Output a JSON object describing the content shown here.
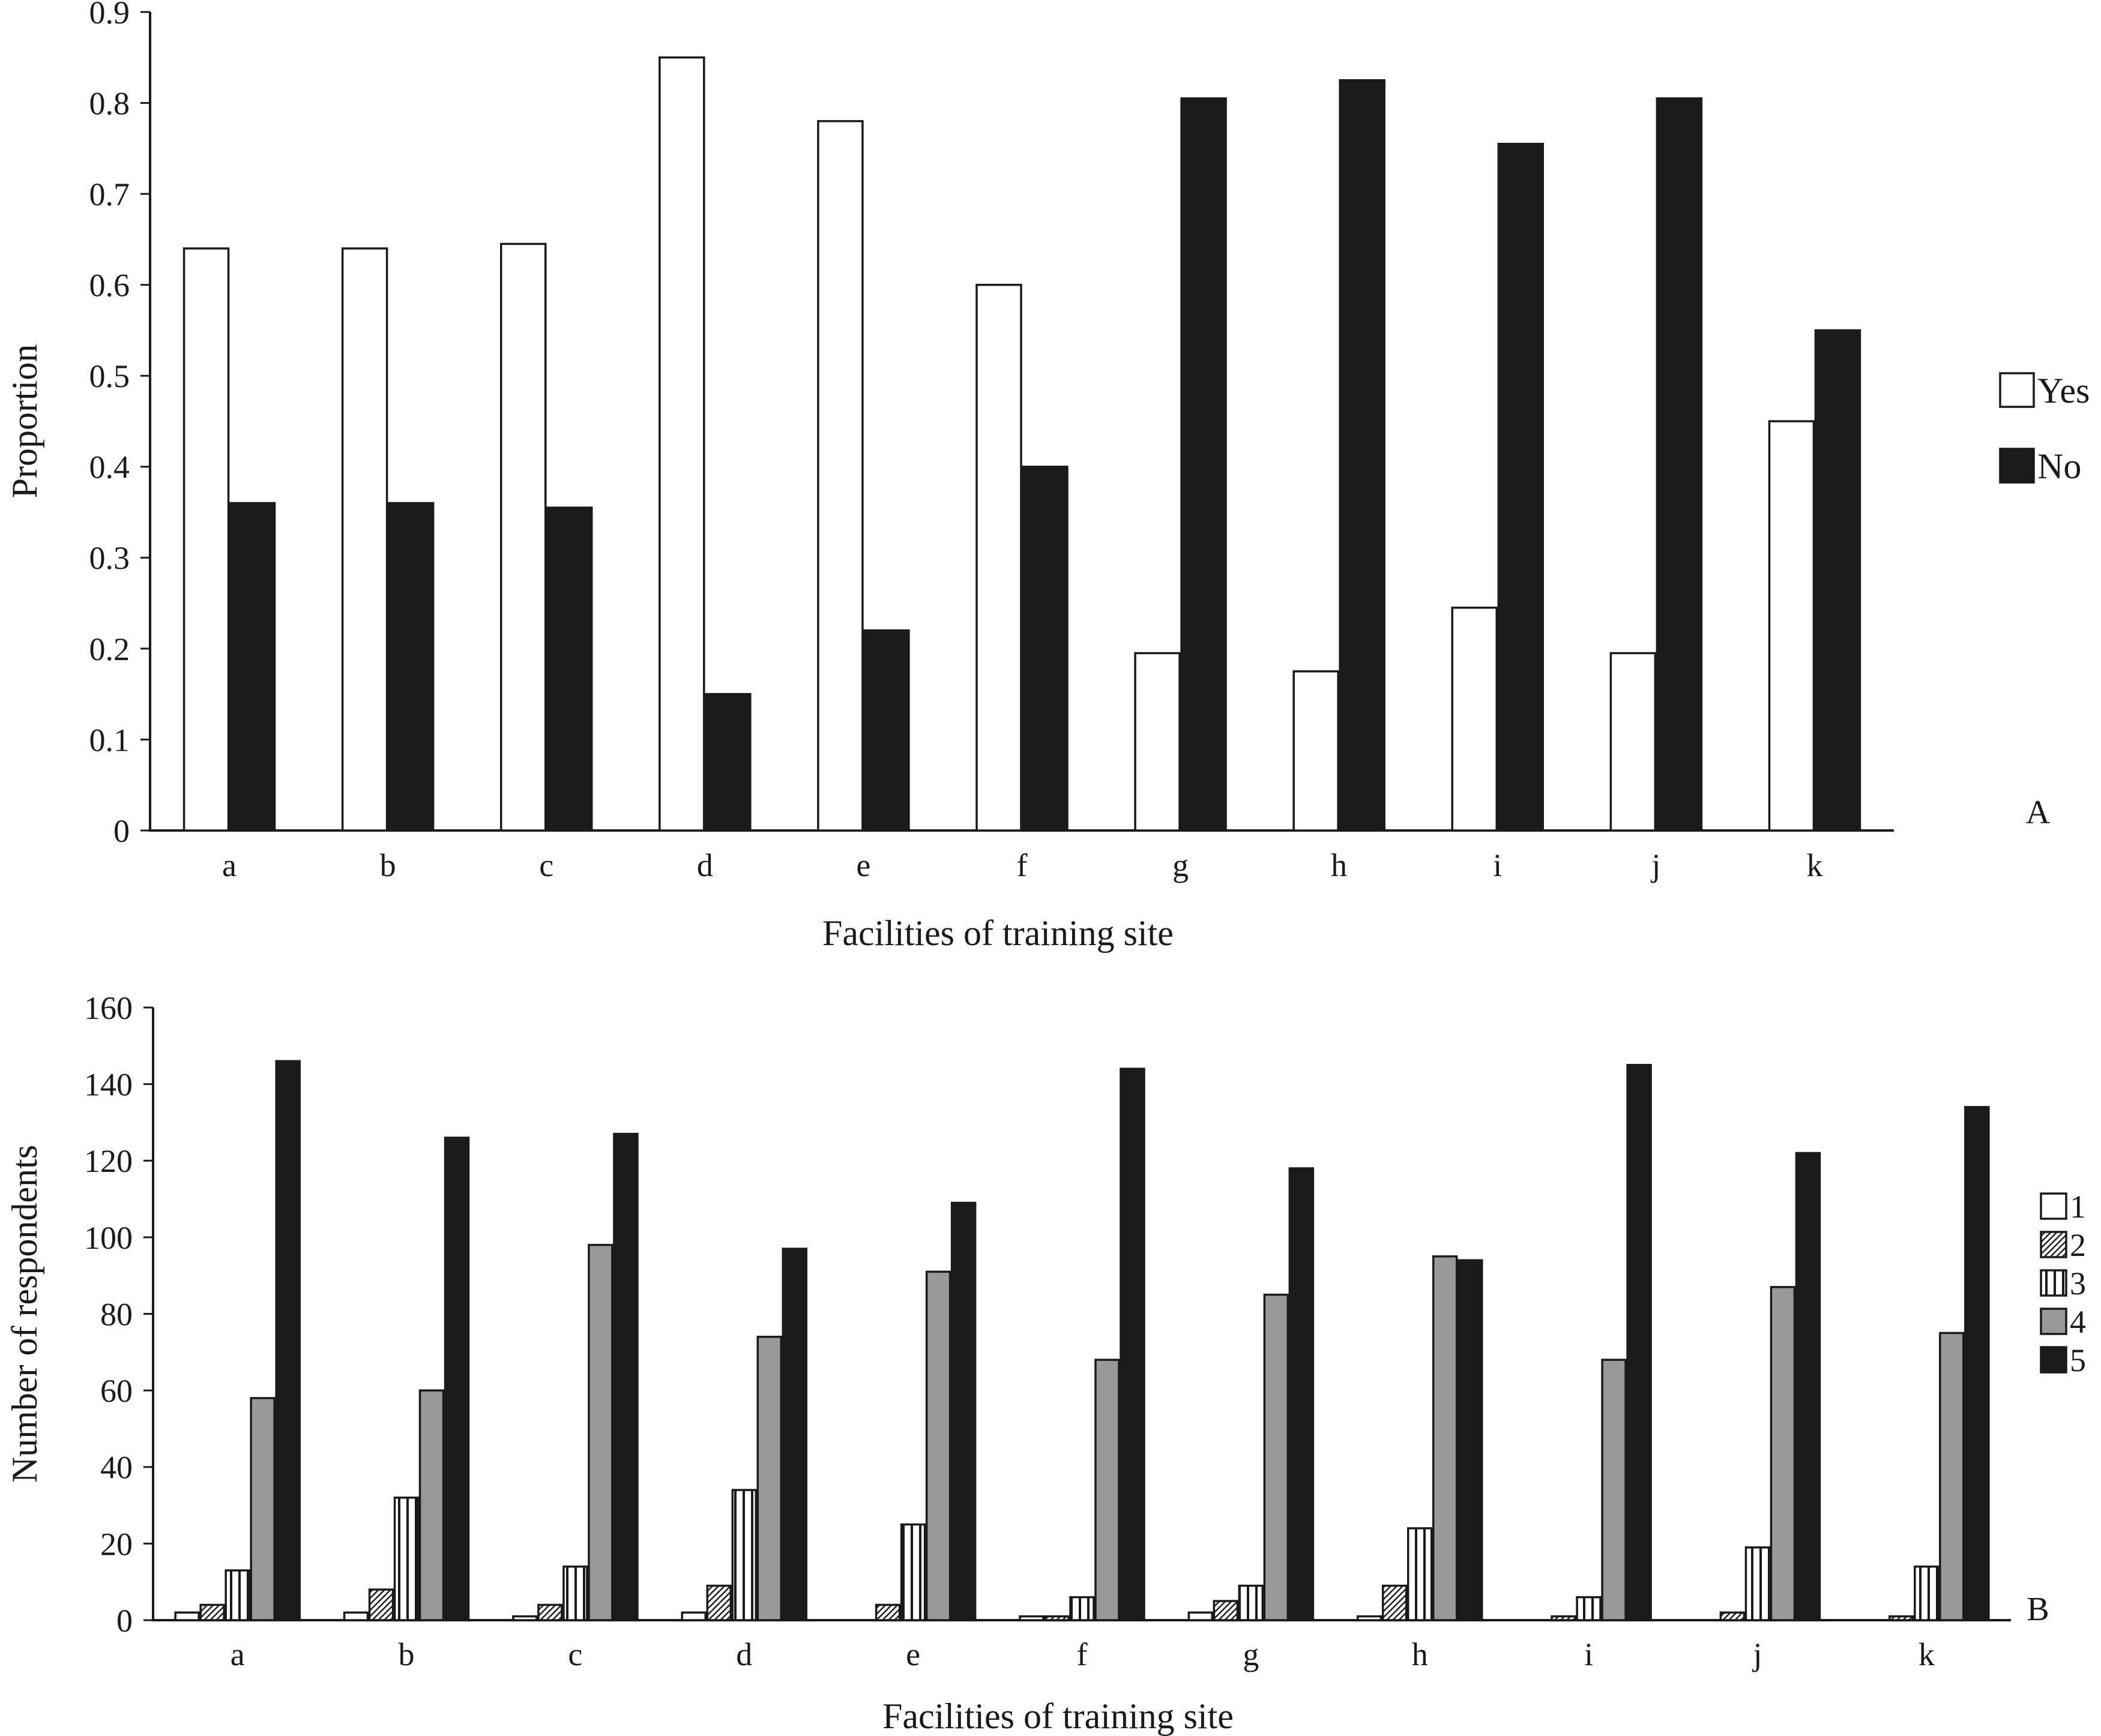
{
  "chart_data": [
    {
      "type": "bar",
      "panel_label": "A",
      "categories": [
        "a",
        "b",
        "c",
        "d",
        "e",
        "f",
        "g",
        "h",
        "i",
        "j",
        "k"
      ],
      "series": [
        {
          "name": "Yes",
          "values": [
            0.64,
            0.64,
            0.645,
            0.85,
            0.78,
            0.6,
            0.195,
            0.175,
            0.245,
            0.195,
            0.45
          ]
        },
        {
          "name": "No",
          "values": [
            0.36,
            0.36,
            0.355,
            0.15,
            0.22,
            0.4,
            0.805,
            0.825,
            0.755,
            0.805,
            0.55
          ]
        }
      ],
      "xlabel": "Facilities of training site",
      "ylabel": "Proportion",
      "ylim": [
        0,
        0.9
      ],
      "yticks": [
        "0",
        "0.1",
        "0.2",
        "0.3",
        "0.4",
        "0.5",
        "0.6",
        "0.7",
        "0.8",
        "0.9"
      ],
      "grid": false,
      "legend": "right",
      "colors": {
        "Yes": "#ffffff",
        "No": "#1a1a1a"
      }
    },
    {
      "type": "bar",
      "panel_label": "B",
      "categories": [
        "a",
        "b",
        "c",
        "d",
        "e",
        "f",
        "g",
        "h",
        "i",
        "j",
        "k"
      ],
      "series": [
        {
          "name": "1",
          "values": [
            2,
            2,
            1,
            2,
            0,
            1,
            2,
            1,
            0,
            0,
            0
          ]
        },
        {
          "name": "2",
          "values": [
            4,
            8,
            4,
            9,
            4,
            1,
            5,
            9,
            1,
            2,
            1
          ]
        },
        {
          "name": "3",
          "values": [
            13,
            32,
            14,
            34,
            25,
            6,
            9,
            24,
            6,
            19,
            14
          ]
        },
        {
          "name": "4",
          "values": [
            58,
            60,
            98,
            74,
            91,
            68,
            85,
            95,
            68,
            87,
            75
          ]
        },
        {
          "name": "5",
          "values": [
            146,
            126,
            127,
            97,
            109,
            144,
            118,
            94,
            145,
            122,
            134
          ]
        }
      ],
      "xlabel": "Facilities of training site",
      "ylabel": "Number of respondents",
      "ylim": [
        0,
        160
      ],
      "yticks": [
        "0",
        "20",
        "40",
        "60",
        "80",
        "100",
        "120",
        "140",
        "160"
      ],
      "grid": false,
      "legend": "right",
      "colors": {
        "1": "#ffffff",
        "2": "hatch-diagonal",
        "3": "hatch-vertical",
        "4": "#999999",
        "5": "#1a1a1a"
      }
    }
  ]
}
